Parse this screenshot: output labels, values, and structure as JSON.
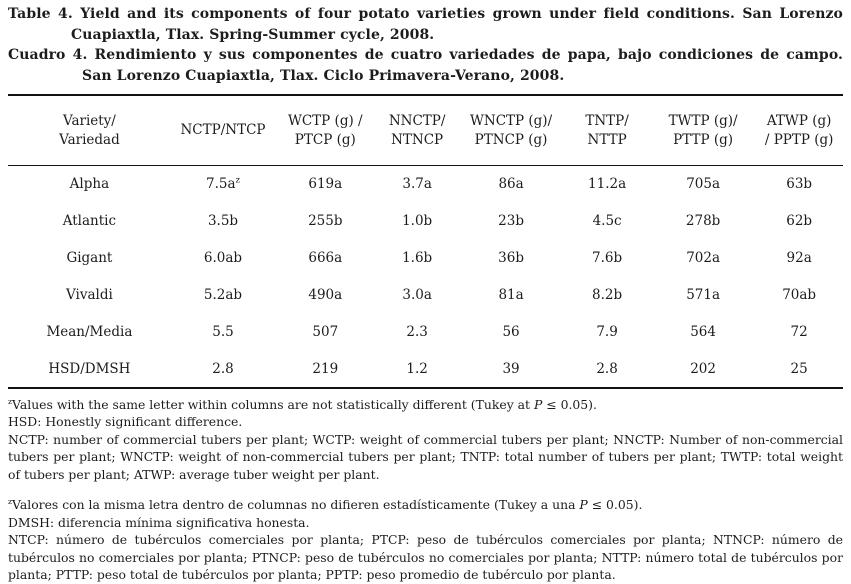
{
  "document": {
    "background_color": "#ffffff",
    "text_color": "#1c1c1c",
    "rule_color": "#111111"
  },
  "captions": {
    "english": "Table 4. Yield and its components of four potato varieties grown under field conditions. San Lorenzo Cuapiaxtla, Tlax. Spring-Summer cycle, 2008.",
    "spanish": "Cuadro 4. Rendimiento y sus componentes de cuatro variedades de papa, bajo condiciones de campo. San Lorenzo Cuapiaxtla, Tlax. Ciclo Primavera-Verano, 2008."
  },
  "table": {
    "column_headers": [
      "Variety/\nVariedad",
      "NCTP/NTCP",
      "WCTP (g) /\nPTCP (g)",
      "NNCTP/\nNTNCP",
      "WNCTP (g)/\nPTNCP (g)",
      "TNTP/\nNTTP",
      "TWTP (g)/\nPTTP (g)",
      "ATWP (g)\n/ PPTP (g)"
    ],
    "rows": [
      {
        "label": "Alpha",
        "values": [
          {
            "text": "7.5a",
            "sup": "z"
          },
          "619a",
          "3.7a",
          "86a",
          "11.2a",
          "705a",
          "63b"
        ]
      },
      {
        "label": "Atlantic",
        "values": [
          "3.5b",
          "255b",
          "1.0b",
          "23b",
          "4.5c",
          "278b",
          "62b"
        ]
      },
      {
        "label": "Gigant",
        "values": [
          "6.0ab",
          "666a",
          "1.6b",
          "36b",
          "7.6b",
          "702a",
          "92a"
        ]
      },
      {
        "label": "Vivaldi",
        "values": [
          "5.2ab",
          "490a",
          "3.0a",
          "81a",
          "8.2b",
          "571a",
          "70ab"
        ]
      },
      {
        "label": "Mean/Media",
        "values": [
          "5.5",
          "507",
          "2.3",
          "56",
          "7.9",
          "564",
          "72"
        ]
      },
      {
        "label": "HSD/DMSH",
        "values": [
          "2.8",
          "219",
          "1.2",
          "39",
          "2.8",
          "202",
          "25"
        ]
      }
    ]
  },
  "footnotes_english": [
    [
      {
        "sup": "z"
      },
      {
        "text": "Values with the same letter within columns are not statistically different (Tukey at "
      },
      {
        "italic": "P"
      },
      {
        "text": " ≤ 0.05)."
      }
    ],
    [
      {
        "text": "HSD: Honestly significant difference."
      }
    ],
    [
      {
        "text": "NCTP: number of commercial tubers per plant; WCTP: weight of commercial tubers per plant; NNCTP: Number of non-commercial tubers per plant; WNCTP: weight of non-commercial tubers per plant; TNTP: total number of tubers per plant; TWTP: total weight of tubers per plant; ATWP: average tuber weight per plant."
      }
    ]
  ],
  "footnotes_spanish": [
    [
      {
        "sup": "z"
      },
      {
        "text": "Valores con la misma letra dentro de columnas no difieren estadísticamente (Tukey a una "
      },
      {
        "italic": "P"
      },
      {
        "text": " ≤ 0.05)."
      }
    ],
    [
      {
        "text": "DMSH: diferencia mínima significativa honesta."
      }
    ],
    [
      {
        "text": "NTCP: número de tubérculos comerciales por planta; PTCP: peso de tubérculos comerciales por planta; NTNCP: número de tubérculos no comerciales por planta; PTNCP: peso de tubérculos no comerciales por planta; NTTP: número total de tubérculos por planta; PTTP: peso total de tubérculos por planta; PPTP: peso promedio de tubérculo por planta."
      }
    ]
  ]
}
